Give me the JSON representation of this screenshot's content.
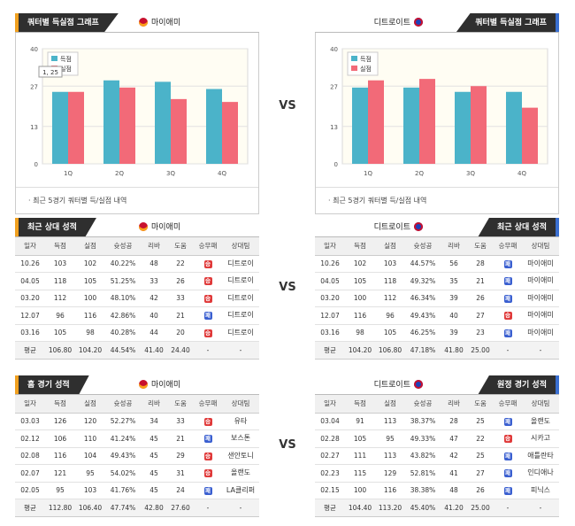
{
  "vs_label": "VS",
  "chart_left": {
    "header": {
      "tab": "쿼터별 득실점 그래프",
      "team": "마이애미"
    },
    "note": "· 최근 5경기 쿼터별 득/실점 내역",
    "chart_data": {
      "type": "bar",
      "categories": [
        "1Q",
        "2Q",
        "3Q",
        "4Q"
      ],
      "series": [
        {
          "name": "득점",
          "values": [
            25,
            29,
            28.5,
            26
          ],
          "color": "#4bb3c9"
        },
        {
          "name": "실점",
          "values": [
            25,
            26.5,
            22.5,
            21.5
          ],
          "color": "#f26a78"
        }
      ],
      "yticks": [
        0,
        13,
        27,
        40
      ],
      "ylim": [
        0,
        40
      ],
      "tooltip": "1, 25"
    }
  },
  "chart_right": {
    "header": {
      "tab": "쿼터별 득실점 그래프",
      "team": "디트로이트"
    },
    "note": "· 최근 5경기 쿼터별 득/실점 내역",
    "chart_data": {
      "type": "bar",
      "categories": [
        "1Q",
        "2Q",
        "3Q",
        "4Q"
      ],
      "series": [
        {
          "name": "득점",
          "values": [
            26.5,
            26.5,
            25,
            25
          ],
          "color": "#4bb3c9"
        },
        {
          "name": "실점",
          "values": [
            29,
            29.5,
            27,
            19.5
          ],
          "color": "#f26a78"
        }
      ],
      "yticks": [
        0,
        13,
        27,
        40
      ],
      "ylim": [
        0,
        40
      ]
    }
  },
  "columns": [
    "일자",
    "득점",
    "실점",
    "슛성공",
    "리바",
    "도움",
    "승무패",
    "상대팀"
  ],
  "win_label": "승",
  "loss_label": "패",
  "recent_left": {
    "header": {
      "tab": "최근 상대 성적",
      "team": "마이애미"
    },
    "rows": [
      [
        "10.26",
        "103",
        "102",
        "40.22%",
        "48",
        "22",
        "W",
        "디트로이"
      ],
      [
        "04.05",
        "118",
        "105",
        "51.25%",
        "33",
        "26",
        "W",
        "디트로이"
      ],
      [
        "03.20",
        "112",
        "100",
        "48.10%",
        "42",
        "33",
        "W",
        "디트로이"
      ],
      [
        "12.07",
        "96",
        "116",
        "42.86%",
        "40",
        "21",
        "L",
        "디트로이"
      ],
      [
        "03.16",
        "105",
        "98",
        "40.28%",
        "44",
        "20",
        "W",
        "디트로이"
      ]
    ],
    "avg": [
      "평균",
      "106.80",
      "104.20",
      "44.54%",
      "41.40",
      "24.40",
      "-",
      "-"
    ]
  },
  "recent_right": {
    "header": {
      "tab": "최근 상대 성적",
      "team": "디트로이트"
    },
    "rows": [
      [
        "10.26",
        "102",
        "103",
        "44.57%",
        "56",
        "28",
        "L",
        "마이애미"
      ],
      [
        "04.05",
        "105",
        "118",
        "49.32%",
        "35",
        "21",
        "L",
        "마이애미"
      ],
      [
        "03.20",
        "100",
        "112",
        "46.34%",
        "39",
        "26",
        "L",
        "마이애미"
      ],
      [
        "12.07",
        "116",
        "96",
        "49.43%",
        "40",
        "27",
        "W",
        "마이애미"
      ],
      [
        "03.16",
        "98",
        "105",
        "46.25%",
        "39",
        "23",
        "L",
        "마이애미"
      ]
    ],
    "avg": [
      "평균",
      "104.20",
      "106.80",
      "47.18%",
      "41.80",
      "25.00",
      "-",
      "-"
    ]
  },
  "home_left": {
    "header": {
      "tab": "홈 경기 성적",
      "team": "마이애미"
    },
    "rows": [
      [
        "03.03",
        "126",
        "120",
        "52.27%",
        "34",
        "33",
        "W",
        "유타"
      ],
      [
        "02.12",
        "106",
        "110",
        "41.24%",
        "45",
        "21",
        "L",
        "보스톤"
      ],
      [
        "02.08",
        "116",
        "104",
        "49.43%",
        "45",
        "29",
        "W",
        "샌안토니"
      ],
      [
        "02.07",
        "121",
        "95",
        "54.02%",
        "45",
        "31",
        "W",
        "올랜도"
      ],
      [
        "02.05",
        "95",
        "103",
        "41.76%",
        "45",
        "24",
        "L",
        "LA클리퍼"
      ]
    ],
    "avg": [
      "평균",
      "112.80",
      "106.40",
      "47.74%",
      "42.80",
      "27.60",
      "-",
      "-"
    ]
  },
  "away_right": {
    "header": {
      "tab": "원정 경기 성적",
      "team": "디트로이트"
    },
    "rows": [
      [
        "03.04",
        "91",
        "113",
        "38.37%",
        "28",
        "25",
        "L",
        "올랜도"
      ],
      [
        "02.28",
        "105",
        "95",
        "49.33%",
        "47",
        "22",
        "W",
        "시카고"
      ],
      [
        "02.27",
        "111",
        "113",
        "43.82%",
        "42",
        "25",
        "L",
        "애틀란타"
      ],
      [
        "02.23",
        "115",
        "129",
        "52.81%",
        "41",
        "27",
        "L",
        "인디애나"
      ],
      [
        "02.15",
        "100",
        "116",
        "38.38%",
        "48",
        "26",
        "L",
        "피닉스"
      ]
    ],
    "avg": [
      "평균",
      "104.40",
      "113.20",
      "45.40%",
      "41.20",
      "25.00",
      "-",
      "-"
    ]
  }
}
